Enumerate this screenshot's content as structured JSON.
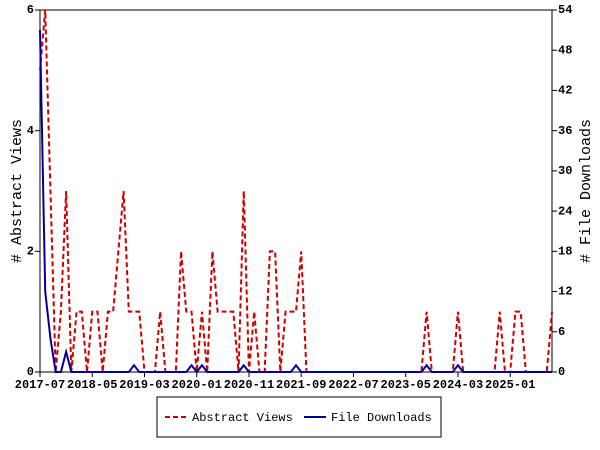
{
  "chart_data": {
    "type": "line",
    "y_label": "# Abstract Views",
    "y2_label": "# File Downloads",
    "categories": [
      "2017-07",
      "2017-08",
      "2017-09",
      "2017-10",
      "2017-11",
      "2017-12",
      "2018-01",
      "2018-02",
      "2018-03",
      "2018-04",
      "2018-05",
      "2018-06",
      "2018-07",
      "2018-08",
      "2018-09",
      "2018-10",
      "2018-11",
      "2018-12",
      "2019-01",
      "2019-02",
      "2019-03",
      "2019-04",
      "2019-05",
      "2019-06",
      "2019-07",
      "2019-08",
      "2019-09",
      "2019-10",
      "2019-11",
      "2019-12",
      "2020-01",
      "2020-02",
      "2020-03",
      "2020-04",
      "2020-05",
      "2020-06",
      "2020-07",
      "2020-08",
      "2020-09",
      "2020-10",
      "2020-11",
      "2020-12",
      "2021-01",
      "2021-02",
      "2021-03",
      "2021-04",
      "2021-05",
      "2021-06",
      "2021-07",
      "2021-08",
      "2021-09",
      "2021-10",
      "2021-11",
      "2021-12",
      "2022-01",
      "2022-02",
      "2022-03",
      "2022-04",
      "2022-05",
      "2022-06",
      "2022-07",
      "2022-08",
      "2022-09",
      "2022-10",
      "2022-11",
      "2022-12",
      "2023-01",
      "2023-02",
      "2023-03",
      "2023-04",
      "2023-05",
      "2023-06",
      "2023-07",
      "2023-08",
      "2023-09",
      "2023-10",
      "2023-11",
      "2023-12",
      "2024-01",
      "2024-02",
      "2024-03",
      "2024-04",
      "2024-05",
      "2024-06",
      "2024-07",
      "2024-08",
      "2024-09",
      "2024-10",
      "2024-11",
      "2024-12",
      "2025-01",
      "2025-02",
      "2025-03",
      "2025-04",
      "2025-05",
      "2025-06",
      "2025-07",
      "2025-08",
      "2025-09"
    ],
    "xticks": [
      "2017-07",
      "2018-05",
      "2019-03",
      "2020-01",
      "2020-11",
      "2021-09",
      "2022-07",
      "2023-05",
      "2024-03",
      "2025-01"
    ],
    "series": [
      {
        "name": "Abstract Views",
        "color": "#cc0000",
        "dash": true,
        "axis": "y",
        "values": [
          5,
          6,
          3,
          0,
          1,
          3,
          0,
          1,
          1,
          0,
          1,
          1,
          0,
          1,
          1,
          2,
          3,
          1,
          1,
          1,
          0,
          0,
          0,
          1,
          0,
          0,
          0,
          2,
          1,
          1,
          0,
          1,
          0,
          2,
          1,
          1,
          1,
          1,
          0,
          3,
          0,
          1,
          0,
          0,
          2,
          2,
          0,
          1,
          1,
          1,
          2,
          0,
          0,
          0,
          0,
          0,
          0,
          0,
          0,
          0,
          0,
          0,
          0,
          0,
          0,
          0,
          0,
          0,
          0,
          0,
          0,
          0,
          0,
          0,
          1,
          0,
          0,
          0,
          0,
          0,
          1,
          0,
          0,
          0,
          0,
          0,
          0,
          0,
          1,
          0,
          0,
          1,
          1,
          0,
          0,
          0,
          0,
          0,
          1
        ]
      },
      {
        "name": "File Downloads",
        "color": "#000099",
        "dash": false,
        "axis": "y2",
        "values": [
          51,
          12,
          5,
          0,
          0,
          3,
          0,
          0,
          0,
          0,
          0,
          0,
          0,
          0,
          0,
          0,
          0,
          0,
          1,
          0,
          0,
          0,
          0,
          0,
          0,
          0,
          0,
          0,
          0,
          1,
          0,
          1,
          0,
          0,
          0,
          0,
          0,
          0,
          0,
          1,
          0,
          0,
          0,
          0,
          0,
          0,
          0,
          0,
          0,
          1,
          0,
          0,
          0,
          0,
          0,
          0,
          0,
          0,
          0,
          0,
          0,
          0,
          0,
          0,
          0,
          0,
          0,
          0,
          0,
          0,
          0,
          0,
          0,
          0,
          1,
          0,
          0,
          0,
          0,
          0,
          1,
          0,
          0,
          0,
          0,
          0,
          0,
          0,
          0,
          0,
          0,
          0,
          0,
          0,
          0,
          0,
          0,
          0,
          0
        ]
      }
    ],
    "ylim": [
      0,
      6
    ],
    "yticks": [
      0,
      2,
      4,
      6
    ],
    "y2lim": [
      0,
      54
    ],
    "y2ticks": [
      0,
      6,
      12,
      18,
      24,
      30,
      36,
      42,
      48,
      54
    ],
    "legend": "bottom"
  }
}
